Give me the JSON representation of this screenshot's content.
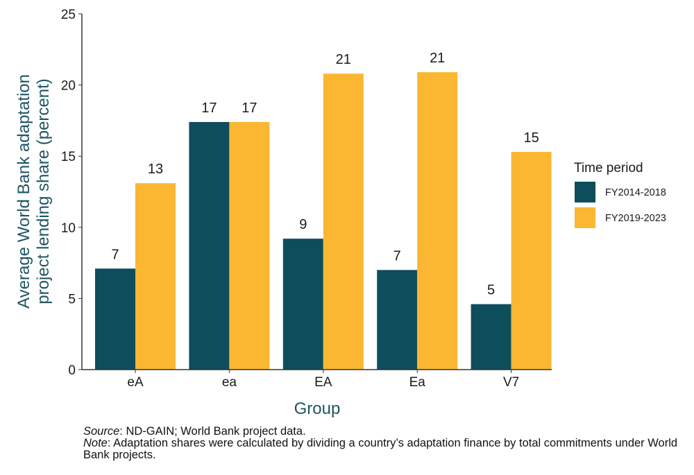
{
  "chart_data": {
    "type": "bar",
    "xlabel": "Group",
    "ylabel_lines": [
      "Average World Bank adaptation",
      "project lending share (percent)"
    ],
    "categories": [
      "eA",
      "ea",
      "EA",
      "Ea",
      "V7"
    ],
    "ylim": [
      0,
      25
    ],
    "yticks": [
      0,
      5,
      10,
      15,
      20,
      25
    ],
    "grid": false,
    "legend_position": "right",
    "legend_title": "Time period",
    "series": [
      {
        "name": "FY2014-2018",
        "color": "#0e4d5c",
        "values": [
          7.1,
          17.4,
          9.2,
          7.0,
          4.6
        ],
        "labels": [
          "7",
          "17",
          "9",
          "7",
          "5"
        ]
      },
      {
        "name": "FY2019-2023",
        "color": "#fbb731",
        "values": [
          13.1,
          17.4,
          20.8,
          20.9,
          15.3
        ],
        "labels": [
          "13",
          "17",
          "21",
          "21",
          "15"
        ]
      }
    ]
  },
  "notes": {
    "source_label": "Source",
    "source_text": ": ND-GAIN; World Bank project data.",
    "note_label": "Note",
    "note_text": ": Adaptation shares were calculated by dividing a country’s adaptation finance by total commitments under World Bank projects."
  }
}
